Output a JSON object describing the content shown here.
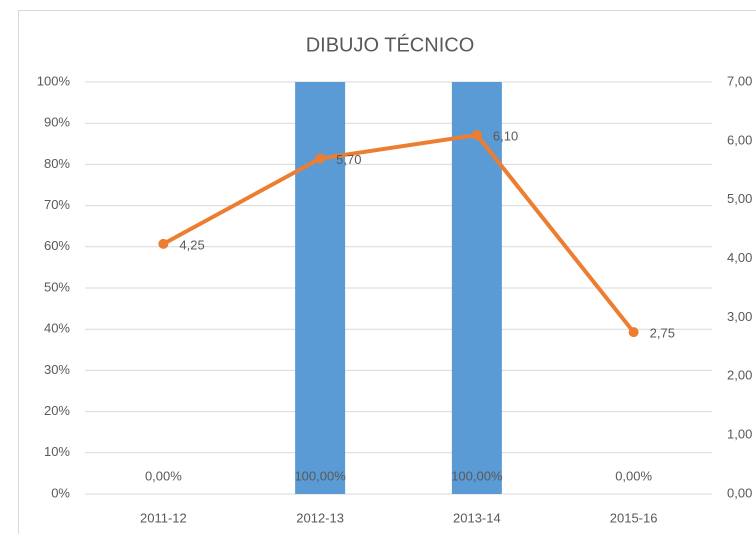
{
  "chart_data": {
    "type": "combo",
    "title": "DIBUJO TÉCNICO",
    "categories": [
      "2011-12",
      "2012-13",
      "2013-14",
      "2015-16"
    ],
    "series": [
      {
        "type": "bar",
        "color": "#5b9bd5",
        "values": [
          0,
          100,
          100,
          0
        ],
        "value_labels": [
          "0,00%",
          "100,00%",
          "100,00%",
          "0,00%"
        ]
      },
      {
        "type": "line",
        "axis": "y2",
        "color": "#ed7d31",
        "values": [
          4.25,
          5.7,
          6.1,
          2.75
        ],
        "value_labels": [
          "4,25",
          "5,70",
          "6,10",
          "2,75"
        ]
      }
    ],
    "ylim": [
      0,
      100
    ],
    "yticks": [
      {
        "value": 0,
        "label": "0%"
      },
      {
        "value": 10,
        "label": "10%"
      },
      {
        "value": 20,
        "label": "20%"
      },
      {
        "value": 30,
        "label": "30%"
      },
      {
        "value": 40,
        "label": "40%"
      },
      {
        "value": 50,
        "label": "50%"
      },
      {
        "value": 60,
        "label": "60%"
      },
      {
        "value": 70,
        "label": "70%"
      },
      {
        "value": 80,
        "label": "80%"
      },
      {
        "value": 90,
        "label": "90%"
      },
      {
        "value": 100,
        "label": "100%"
      }
    ],
    "y2lim": [
      0,
      7
    ],
    "y2ticks": [
      {
        "value": 0,
        "label": "0,00"
      },
      {
        "value": 1,
        "label": "1,00"
      },
      {
        "value": 2,
        "label": "2,00"
      },
      {
        "value": 3,
        "label": "3,00"
      },
      {
        "value": 4,
        "label": "4,00"
      },
      {
        "value": 5,
        "label": "5,00"
      },
      {
        "value": 6,
        "label": "6,00"
      },
      {
        "value": 7,
        "label": "7,00"
      }
    ],
    "grid": true
  }
}
